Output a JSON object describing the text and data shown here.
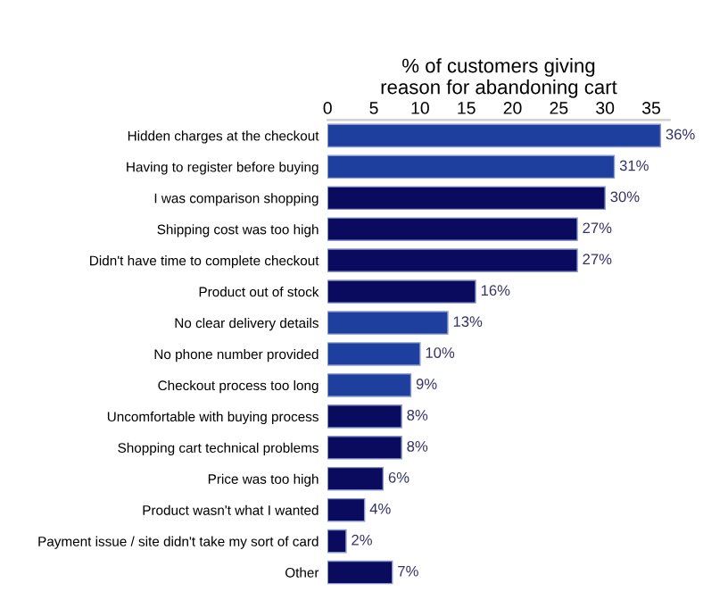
{
  "chart_data": {
    "type": "bar",
    "orientation": "horizontal",
    "xlabel": "% of customers giving\nreason for abandoning cart",
    "categories": [
      "Hidden charges at the checkout",
      "Having to register before buying",
      "I was comparison shopping",
      "Shipping cost was too high",
      "Didn't have time to complete checkout",
      "Product out of stock",
      "No clear delivery details",
      "No phone number provided",
      "Checkout process too long",
      "Uncomfortable with buying process",
      "Shopping cart technical problems",
      "Price was too high",
      "Product wasn't what I wanted",
      "Payment issue / site didn't take my sort of card",
      "Other"
    ],
    "values": [
      36,
      31,
      30,
      27,
      27,
      16,
      13,
      10,
      9,
      8,
      8,
      6,
      4,
      2,
      7
    ],
    "value_labels": [
      "36%",
      "31%",
      "30%",
      "27%",
      "27%",
      "16%",
      "13%",
      "10%",
      "9%",
      "8%",
      "8%",
      "6%",
      "4%",
      "2%",
      "7%"
    ],
    "colors": [
      "#1f3f9e",
      "#1f3f9e",
      "#0a0a5e",
      "#0a0a5e",
      "#0a0a5e",
      "#0a0a5e",
      "#1f3f9e",
      "#1f3f9e",
      "#1f3f9e",
      "#0a0a5e",
      "#0a0a5e",
      "#0a0a5e",
      "#0a0a5e",
      "#0a0a5e",
      "#0a0a5e"
    ],
    "xlim": [
      0,
      37
    ],
    "xticks": [
      0,
      5,
      10,
      15,
      20,
      25,
      30,
      35
    ],
    "grid": false,
    "legend": false
  }
}
